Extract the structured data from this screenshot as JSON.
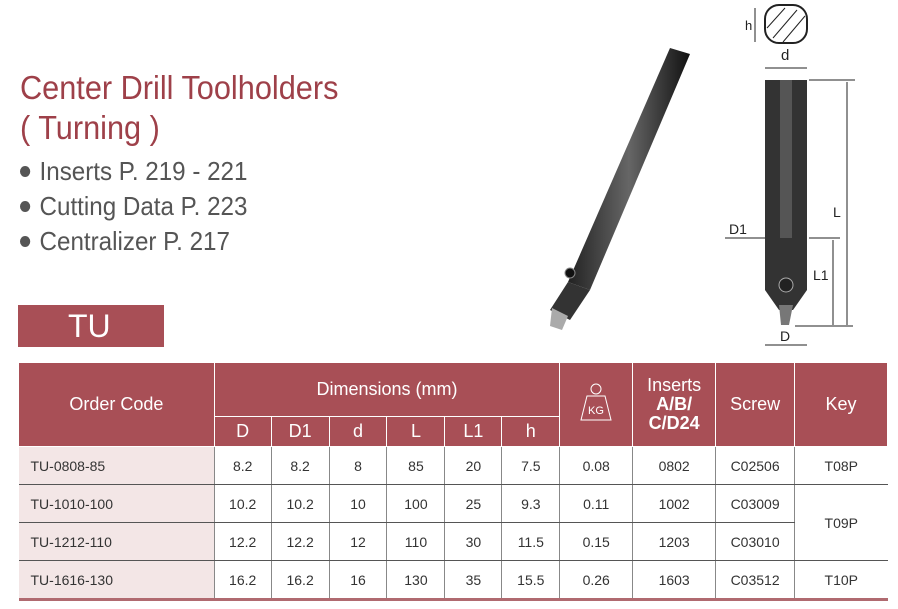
{
  "title_line1": "Center Drill Toolholders",
  "title_line2": "( Turning )",
  "bullets": [
    "Inserts P. 219 - 221",
    "Cutting Data P. 223",
    "Centralizer P. 217"
  ],
  "series": "TU",
  "diagram_labels": {
    "h": "h",
    "d": "d",
    "D1": "D1",
    "L": "L",
    "L1": "L1",
    "D": "D"
  },
  "table": {
    "headers": {
      "order_code": "Order Code",
      "dimensions": "Dimensions (mm)",
      "weight_icon_label": "KG",
      "inserts_line1": "Inserts",
      "inserts_line2": "A/B/",
      "inserts_line3": "C/D24",
      "screw": "Screw",
      "key": "Key"
    },
    "dim_headers": [
      "D",
      "D1",
      "d",
      "L",
      "L1",
      "h"
    ],
    "rows": [
      {
        "code": "TU-0808-85",
        "D": "8.2",
        "D1": "8.2",
        "d": "8",
        "L": "85",
        "L1": "20",
        "h": "7.5",
        "kg": "0.08",
        "inserts": "0802",
        "screw": "C02506",
        "key": "T08P"
      },
      {
        "code": "TU-1010-100",
        "D": "10.2",
        "D1": "10.2",
        "d": "10",
        "L": "100",
        "L1": "25",
        "h": "9.3",
        "kg": "0.11",
        "inserts": "1002",
        "screw": "C03009",
        "key": "T09P"
      },
      {
        "code": "TU-1212-110",
        "D": "12.2",
        "D1": "12.2",
        "d": "12",
        "L": "110",
        "L1": "30",
        "h": "11.5",
        "kg": "0.15",
        "inserts": "1203",
        "screw": "C03010"
      },
      {
        "code": "TU-1616-130",
        "D": "16.2",
        "D1": "16.2",
        "d": "16",
        "L": "130",
        "L1": "35",
        "h": "15.5",
        "kg": "0.26",
        "inserts": "1603",
        "screw": "C03512",
        "key": "T10P"
      }
    ]
  },
  "colors": {
    "accent": "#a84f56",
    "title": "#9e4049"
  }
}
